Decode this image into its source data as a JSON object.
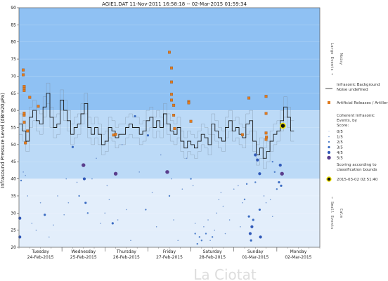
{
  "chart_data": {
    "type": "scatter",
    "title": "AGIE1.DAT   11-Nov-2011 16:58:18   --   02-Mar-2015 01:59:34",
    "ylabel": "Infrasound Pressure Level  (dBre20µPa)",
    "ylim": [
      20,
      90
    ],
    "yticks": [
      20,
      25,
      30,
      35,
      40,
      45,
      50,
      55,
      60,
      65,
      70,
      75,
      80,
      85,
      90
    ],
    "xlim": [
      0,
      7
    ],
    "days": [
      {
        "name": "Tuesday",
        "date": "24-Feb-2015",
        "x": 0.5
      },
      {
        "name": "Wednesday",
        "date": "25-Feb-2015",
        "x": 1.5
      },
      {
        "name": "Thursday",
        "date": "26-Feb-2015",
        "x": 2.5
      },
      {
        "name": "Friday",
        "date": "27-Feb-2015",
        "x": 3.5
      },
      {
        "name": "Saturday",
        "date": "28-Feb-2015",
        "x": 4.5
      },
      {
        "name": "Sunday",
        "date": "01-Mar-2015",
        "x": 5.5
      },
      {
        "name": "Monday",
        "date": "02-Mar-2015",
        "x": 6.5
      }
    ],
    "bands": [
      {
        "from": 60,
        "to": 90,
        "color": "#8fc1f3"
      },
      {
        "from": 40,
        "to": 60,
        "color": "#bcdaf7"
      },
      {
        "from": 20,
        "to": 40,
        "color": "#e3eefb"
      }
    ],
    "band_labels": [
      {
        "text": "Large Events →",
        "desc": "Noisy",
        "y": 75
      },
      {
        "text": "← Small Events",
        "desc": "Calm",
        "y": 30
      }
    ],
    "noise_series": {
      "name": "Infrasonic Background Noise",
      "x": [
        0.0,
        0.08,
        0.16,
        0.24,
        0.32,
        0.4,
        0.48,
        0.56,
        0.64,
        0.72,
        0.8,
        0.88,
        0.96,
        1.04,
        1.12,
        1.2,
        1.28,
        1.36,
        1.44,
        1.52,
        1.6,
        1.68,
        1.76,
        1.84,
        1.92,
        2.0,
        2.08,
        2.16,
        2.24,
        2.32,
        2.4,
        2.48,
        2.56,
        2.64,
        2.72,
        2.8,
        2.88,
        2.96,
        3.04,
        3.12,
        3.2,
        3.28,
        3.36,
        3.44,
        3.52,
        3.6,
        3.68,
        3.76,
        3.84,
        3.92,
        4.0,
        4.08,
        4.16,
        4.24,
        4.32,
        4.4,
        4.48,
        4.56,
        4.64,
        4.72,
        4.8,
        4.88,
        4.96,
        5.04,
        5.12,
        5.2,
        5.28,
        5.36,
        5.44,
        5.52,
        5.6,
        5.68,
        5.76,
        5.84,
        5.92,
        6.0,
        6.08,
        6.16,
        6.24,
        6.32
      ],
      "values": [
        56,
        54,
        51,
        58,
        60,
        57,
        56,
        61,
        65,
        58,
        55,
        56,
        63,
        60,
        57,
        53,
        55,
        56,
        59,
        62,
        55,
        53,
        55,
        53,
        50,
        51,
        55,
        54,
        52,
        53,
        53,
        55,
        56,
        55,
        55,
        53,
        54,
        57,
        58,
        55,
        57,
        55,
        59,
        56,
        54,
        53,
        55,
        51,
        49,
        51,
        50,
        49,
        51,
        53,
        52,
        50,
        56,
        54,
        52,
        51,
        55,
        57,
        54,
        55,
        53,
        52,
        56,
        57,
        51,
        47,
        49,
        46,
        48,
        51,
        53,
        54,
        57,
        61,
        58,
        54
      ]
    },
    "artillery": {
      "name": "Artificial Releases / Artillery",
      "color": "#e07b1e",
      "points": [
        [
          0.1,
          71.8
        ],
        [
          0.1,
          70.4
        ],
        [
          0.12,
          66.5
        ],
        [
          0.12,
          67
        ],
        [
          0.12,
          65.8
        ],
        [
          0.12,
          59.2
        ],
        [
          0.12,
          58.6
        ],
        [
          0.12,
          56.5
        ],
        [
          0.15,
          50.5
        ],
        [
          0.2,
          54
        ],
        [
          0.25,
          63.8
        ],
        [
          0.45,
          61.2
        ],
        [
          2.2,
          52.8
        ],
        [
          2.25,
          53
        ],
        [
          3.5,
          77
        ],
        [
          3.55,
          72.4
        ],
        [
          3.55,
          68.3
        ],
        [
          3.55,
          64.7
        ],
        [
          3.55,
          63
        ],
        [
          3.6,
          61.5
        ],
        [
          3.6,
          58.6
        ],
        [
          3.62,
          54.7
        ],
        [
          3.95,
          62.6
        ],
        [
          3.95,
          62.2
        ],
        [
          4.0,
          56.8
        ],
        [
          5.35,
          63.6
        ],
        [
          5.75,
          64.1
        ],
        [
          5.75,
          59.1
        ],
        [
          5.75,
          53.4
        ],
        [
          5.76,
          52.2
        ],
        [
          5.75,
          51.5
        ],
        [
          5.2,
          52.9
        ]
      ]
    },
    "events": {
      "name": "Coherent Infrasonic Events, by Score",
      "scores": [
        {
          "label": "0/5",
          "r": 0.5
        },
        {
          "label": "1/5",
          "r": 0.8
        },
        {
          "label": "2/5",
          "r": 1.2
        },
        {
          "label": "3/5",
          "r": 1.6
        },
        {
          "label": "4/5",
          "r": 2.1
        },
        {
          "label": "5/5",
          "r": 2.7
        }
      ],
      "points": [
        [
          0.02,
          28.5,
          4
        ],
        [
          0.02,
          23,
          4
        ],
        [
          0.05,
          39.5,
          2
        ],
        [
          0.1,
          42,
          1
        ],
        [
          0.15,
          41,
          1
        ],
        [
          0.2,
          35,
          1
        ],
        [
          0.3,
          27,
          1
        ],
        [
          0.4,
          25,
          1
        ],
        [
          0.5,
          33,
          1
        ],
        [
          0.6,
          29.5,
          3
        ],
        [
          0.7,
          23,
          1
        ],
        [
          0.8,
          26.5,
          1
        ],
        [
          0.9,
          35,
          1
        ],
        [
          1.05,
          29.5,
          1
        ],
        [
          1.1,
          40,
          1
        ],
        [
          1.15,
          33,
          1
        ],
        [
          1.25,
          49.3,
          3
        ],
        [
          1.35,
          39,
          1
        ],
        [
          1.4,
          35,
          2
        ],
        [
          1.5,
          44,
          5
        ],
        [
          1.52,
          40,
          4
        ],
        [
          1.55,
          33,
          3
        ],
        [
          1.6,
          30,
          2
        ],
        [
          1.7,
          40,
          1
        ],
        [
          1.8,
          46,
          1
        ],
        [
          1.9,
          27,
          1
        ],
        [
          2.0,
          30,
          1
        ],
        [
          2.05,
          38,
          1
        ],
        [
          2.1,
          34,
          1
        ],
        [
          2.18,
          27,
          3
        ],
        [
          2.25,
          41.5,
          5
        ],
        [
          2.3,
          28,
          1
        ],
        [
          2.4,
          50,
          1
        ],
        [
          2.5,
          31,
          1
        ],
        [
          2.6,
          22,
          1
        ],
        [
          2.7,
          58.3,
          3
        ],
        [
          2.8,
          42,
          1
        ],
        [
          2.95,
          31,
          2
        ],
        [
          3.0,
          52.7,
          3
        ],
        [
          3.1,
          36,
          1
        ],
        [
          3.2,
          26,
          1
        ],
        [
          3.3,
          47,
          1
        ],
        [
          3.45,
          42,
          5
        ],
        [
          3.5,
          35,
          2
        ],
        [
          3.55,
          40,
          1
        ],
        [
          3.6,
          28,
          1
        ],
        [
          3.7,
          22,
          1
        ],
        [
          3.8,
          37,
          1
        ],
        [
          3.9,
          46,
          1
        ],
        [
          4.0,
          40,
          2
        ],
        [
          4.05,
          38,
          1
        ],
        [
          4.1,
          27,
          1
        ],
        [
          4.1,
          24,
          2
        ],
        [
          4.15,
          21,
          2
        ],
        [
          4.2,
          23,
          2
        ],
        [
          4.25,
          22,
          2
        ],
        [
          4.3,
          26,
          1
        ],
        [
          4.35,
          24,
          2
        ],
        [
          4.4,
          28,
          1
        ],
        [
          4.45,
          22,
          1
        ],
        [
          4.5,
          23,
          2
        ],
        [
          4.55,
          25,
          1
        ],
        [
          4.6,
          30,
          1
        ],
        [
          4.65,
          34,
          1
        ],
        [
          4.7,
          36,
          1
        ],
        [
          4.75,
          32,
          1
        ],
        [
          4.8,
          24,
          1
        ],
        [
          4.9,
          28,
          1
        ],
        [
          5.0,
          37,
          1
        ],
        [
          5.1,
          38,
          1
        ],
        [
          5.15,
          26,
          1
        ],
        [
          5.2,
          33,
          1
        ],
        [
          5.25,
          34,
          2
        ],
        [
          5.3,
          38.5,
          2
        ],
        [
          5.35,
          29,
          3
        ],
        [
          5.38,
          24,
          4
        ],
        [
          5.4,
          22,
          3
        ],
        [
          5.42,
          26,
          4
        ],
        [
          5.45,
          28,
          3
        ],
        [
          5.5,
          47,
          4
        ],
        [
          5.55,
          45.5,
          4
        ],
        [
          5.6,
          31,
          3
        ],
        [
          5.62,
          23,
          4
        ],
        [
          5.7,
          35,
          1
        ],
        [
          5.75,
          33,
          1
        ],
        [
          5.85,
          34,
          1
        ],
        [
          5.9,
          29,
          1
        ],
        [
          6.0,
          37,
          2
        ],
        [
          6.05,
          39,
          3
        ],
        [
          6.08,
          44,
          4
        ],
        [
          6.12,
          41.5,
          5
        ],
        [
          6.1,
          38,
          3
        ],
        [
          5.9,
          45,
          2
        ],
        [
          5.95,
          42,
          2
        ],
        [
          5.6,
          41.5,
          4
        ],
        [
          5.5,
          39,
          2
        ]
      ]
    },
    "highlight": {
      "label": "2015-03-02 02:51:40",
      "x": 6.14,
      "y": 55.5,
      "legend_text": "Scoring according to classification bounds"
    },
    "legend": {
      "noise": "Infrasonic Background Noise",
      "artillery": "Artificial Releases / Artillery",
      "events_title": "Coherent Infrasonic Events, by Score:"
    },
    "watermark": "La Ciotat"
  }
}
